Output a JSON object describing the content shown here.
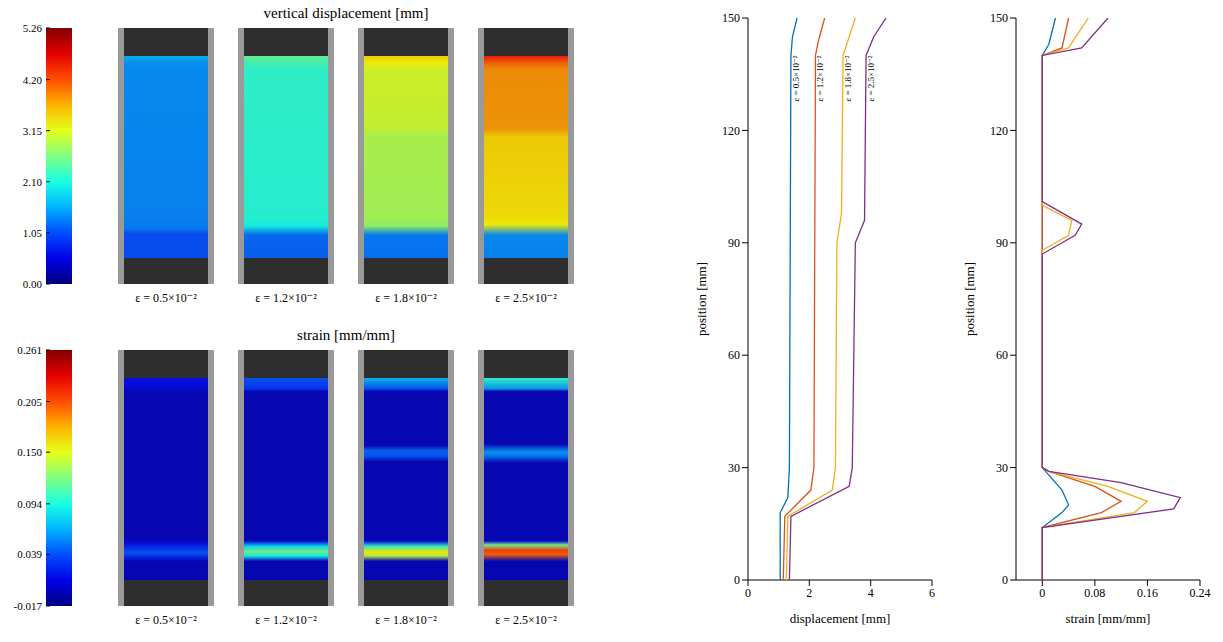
{
  "chart_data": [
    {
      "type": "heatmap",
      "title": "vertical displacement [mm]",
      "panel_labels": [
        "ε = 0.5×10⁻²",
        "ε = 1.2×10⁻²",
        "ε = 1.8×10⁻²",
        "ε = 2.5×10⁻²"
      ],
      "colorbar": {
        "range": [
          0,
          5.26
        ],
        "ticks": [
          {
            "value": 0,
            "label": "0.00"
          },
          1.05,
          {
            "value": 2.1,
            "label": "2.10"
          },
          3.15,
          {
            "value": 4.2,
            "label": "4.20"
          },
          5.26
        ]
      },
      "profile": {
        "type": "line",
        "x_label": "displacement [mm]",
        "y_label": "position [mm]",
        "xlim": [
          0,
          6
        ],
        "xticks": [
          0,
          2,
          4,
          6
        ],
        "ylim": [
          0,
          150
        ],
        "yticks": [
          0,
          30,
          60,
          90,
          120,
          150
        ],
        "series": [
          {
            "name": "ε = 0.5×10⁻²",
            "color": "#0072bd",
            "positions": [
              0,
              18,
              22,
              30,
              140,
              145,
              150
            ],
            "values": [
              1.05,
              1.05,
              1.3,
              1.35,
              1.4,
              1.45,
              1.6
            ]
          },
          {
            "name": "ε = 1.2×10⁻²",
            "color": "#d95319",
            "positions": [
              0,
              17,
              24,
              30,
              140,
              144,
              150
            ],
            "values": [
              1.15,
              1.2,
              2.05,
              2.15,
              2.2,
              2.3,
              2.5
            ]
          },
          {
            "name": "ε = 1.8×10⁻²",
            "color": "#edb120",
            "positions": [
              0,
              17,
              24,
              30,
              90,
              98,
              140,
              145,
              150
            ],
            "values": [
              1.25,
              1.3,
              2.75,
              2.85,
              2.9,
              3.05,
              3.1,
              3.3,
              3.5
            ]
          },
          {
            "name": "ε = 2.5×10⁻²",
            "color": "#7e2f8e",
            "positions": [
              0,
              17,
              25,
              30,
              90,
              96,
              140,
              145,
              150
            ],
            "values": [
              1.35,
              1.4,
              3.3,
              3.4,
              3.5,
              3.8,
              3.85,
              4.1,
              4.5
            ]
          }
        ]
      }
    },
    {
      "type": "heatmap",
      "title": "strain [mm/mm]",
      "panel_labels": [
        "ε = 0.5×10⁻²",
        "ε = 1.2×10⁻²",
        "ε = 1.8×10⁻²",
        "ε = 2.5×10⁻²"
      ],
      "colorbar": {
        "range": [
          -0.017,
          0.261
        ],
        "ticks": [
          -0.017,
          0.039,
          0.094,
          {
            "value": 0.15,
            "label": "0.150"
          },
          0.205,
          0.261
        ]
      },
      "profile": {
        "type": "line",
        "x_label": "strain [mm/mm]",
        "y_label": "position [mm]",
        "xlim": [
          -0.04,
          0.24
        ],
        "xticks": [
          0,
          0.08,
          0.16,
          0.24
        ],
        "ylim": [
          0,
          150
        ],
        "yticks": [
          0,
          30,
          60,
          90,
          120,
          150
        ],
        "series": [
          {
            "color": "#0072bd",
            "positions": [
              0,
              14,
              18,
              20,
              24,
              28,
              30,
              140,
              143,
              150
            ],
            "values": [
              0,
              0,
              0.03,
              0.04,
              0.03,
              0.01,
              0,
              0,
              0.01,
              0.02
            ]
          },
          {
            "color": "#d95319",
            "positions": [
              0,
              14,
              18,
              21,
              25,
              29,
              30,
              140,
              142,
              150
            ],
            "values": [
              0,
              0,
              0.09,
              0.12,
              0.08,
              0.01,
              0,
              0,
              0.03,
              0.04
            ]
          },
          {
            "color": "#edb120",
            "positions": [
              0,
              14,
              18,
              21,
              25,
              29,
              30,
              88,
              92,
              96,
              100,
              140,
              142,
              150
            ],
            "values": [
              0,
              0,
              0.14,
              0.16,
              0.1,
              0.01,
              0,
              0,
              0.04,
              0.045,
              0,
              0,
              0.04,
              0.07
            ]
          },
          {
            "color": "#7e2f8e",
            "positions": [
              0,
              14,
              19,
              22,
              26,
              29,
              30,
              87,
              92,
              95,
              101,
              140,
              142,
              150
            ],
            "values": [
              0,
              0,
              0.2,
              0.21,
              0.12,
              0.01,
              0,
              0,
              0.05,
              0.06,
              0,
              0,
              0.06,
              0.1
            ]
          }
        ]
      }
    }
  ]
}
